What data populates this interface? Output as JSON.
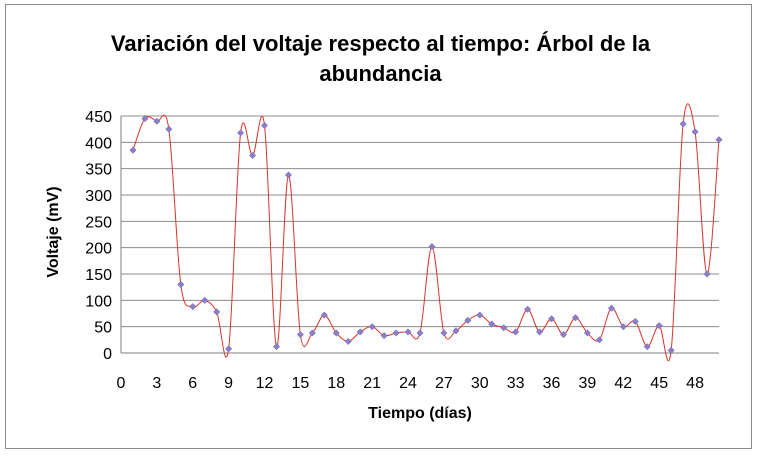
{
  "chart_data": {
    "type": "line",
    "title_line1": "Variación del voltaje respecto al tiempo: Árbol de la",
    "title_line2": "abundancia",
    "xlabel": "Tiempo (días)",
    "ylabel": "Voltaje (mV)",
    "xlim": [
      0,
      50
    ],
    "ylim": [
      0,
      450
    ],
    "x_ticks": [
      0,
      3,
      6,
      9,
      12,
      15,
      18,
      21,
      24,
      27,
      30,
      33,
      36,
      39,
      42,
      45,
      48
    ],
    "y_ticks": [
      0,
      50,
      100,
      150,
      200,
      250,
      300,
      350,
      400,
      450
    ],
    "grid": "horizontal",
    "line_color": "#d9342b",
    "marker_color": "#8b7fc8",
    "series": [
      {
        "x": [
          1,
          2,
          3,
          4,
          5,
          6,
          7,
          8,
          9,
          10,
          11,
          12,
          13,
          14,
          15,
          16,
          17,
          18,
          19,
          20,
          21,
          22,
          23,
          24,
          25,
          26,
          27,
          28,
          29,
          30,
          31,
          32,
          33,
          34,
          35,
          36,
          37,
          38,
          39,
          40,
          41,
          42,
          43,
          44,
          45,
          46,
          47,
          48,
          49,
          50
        ],
        "values": [
          385,
          445,
          440,
          425,
          130,
          88,
          100,
          78,
          8,
          418,
          375,
          432,
          12,
          338,
          35,
          38,
          72,
          38,
          22,
          40,
          50,
          33,
          38,
          40,
          38,
          202,
          38,
          42,
          62,
          72,
          55,
          48,
          40,
          83,
          40,
          65,
          35,
          67,
          38,
          25,
          85,
          50,
          60,
          12,
          52,
          5,
          435,
          420,
          150,
          405
        ]
      }
    ]
  }
}
